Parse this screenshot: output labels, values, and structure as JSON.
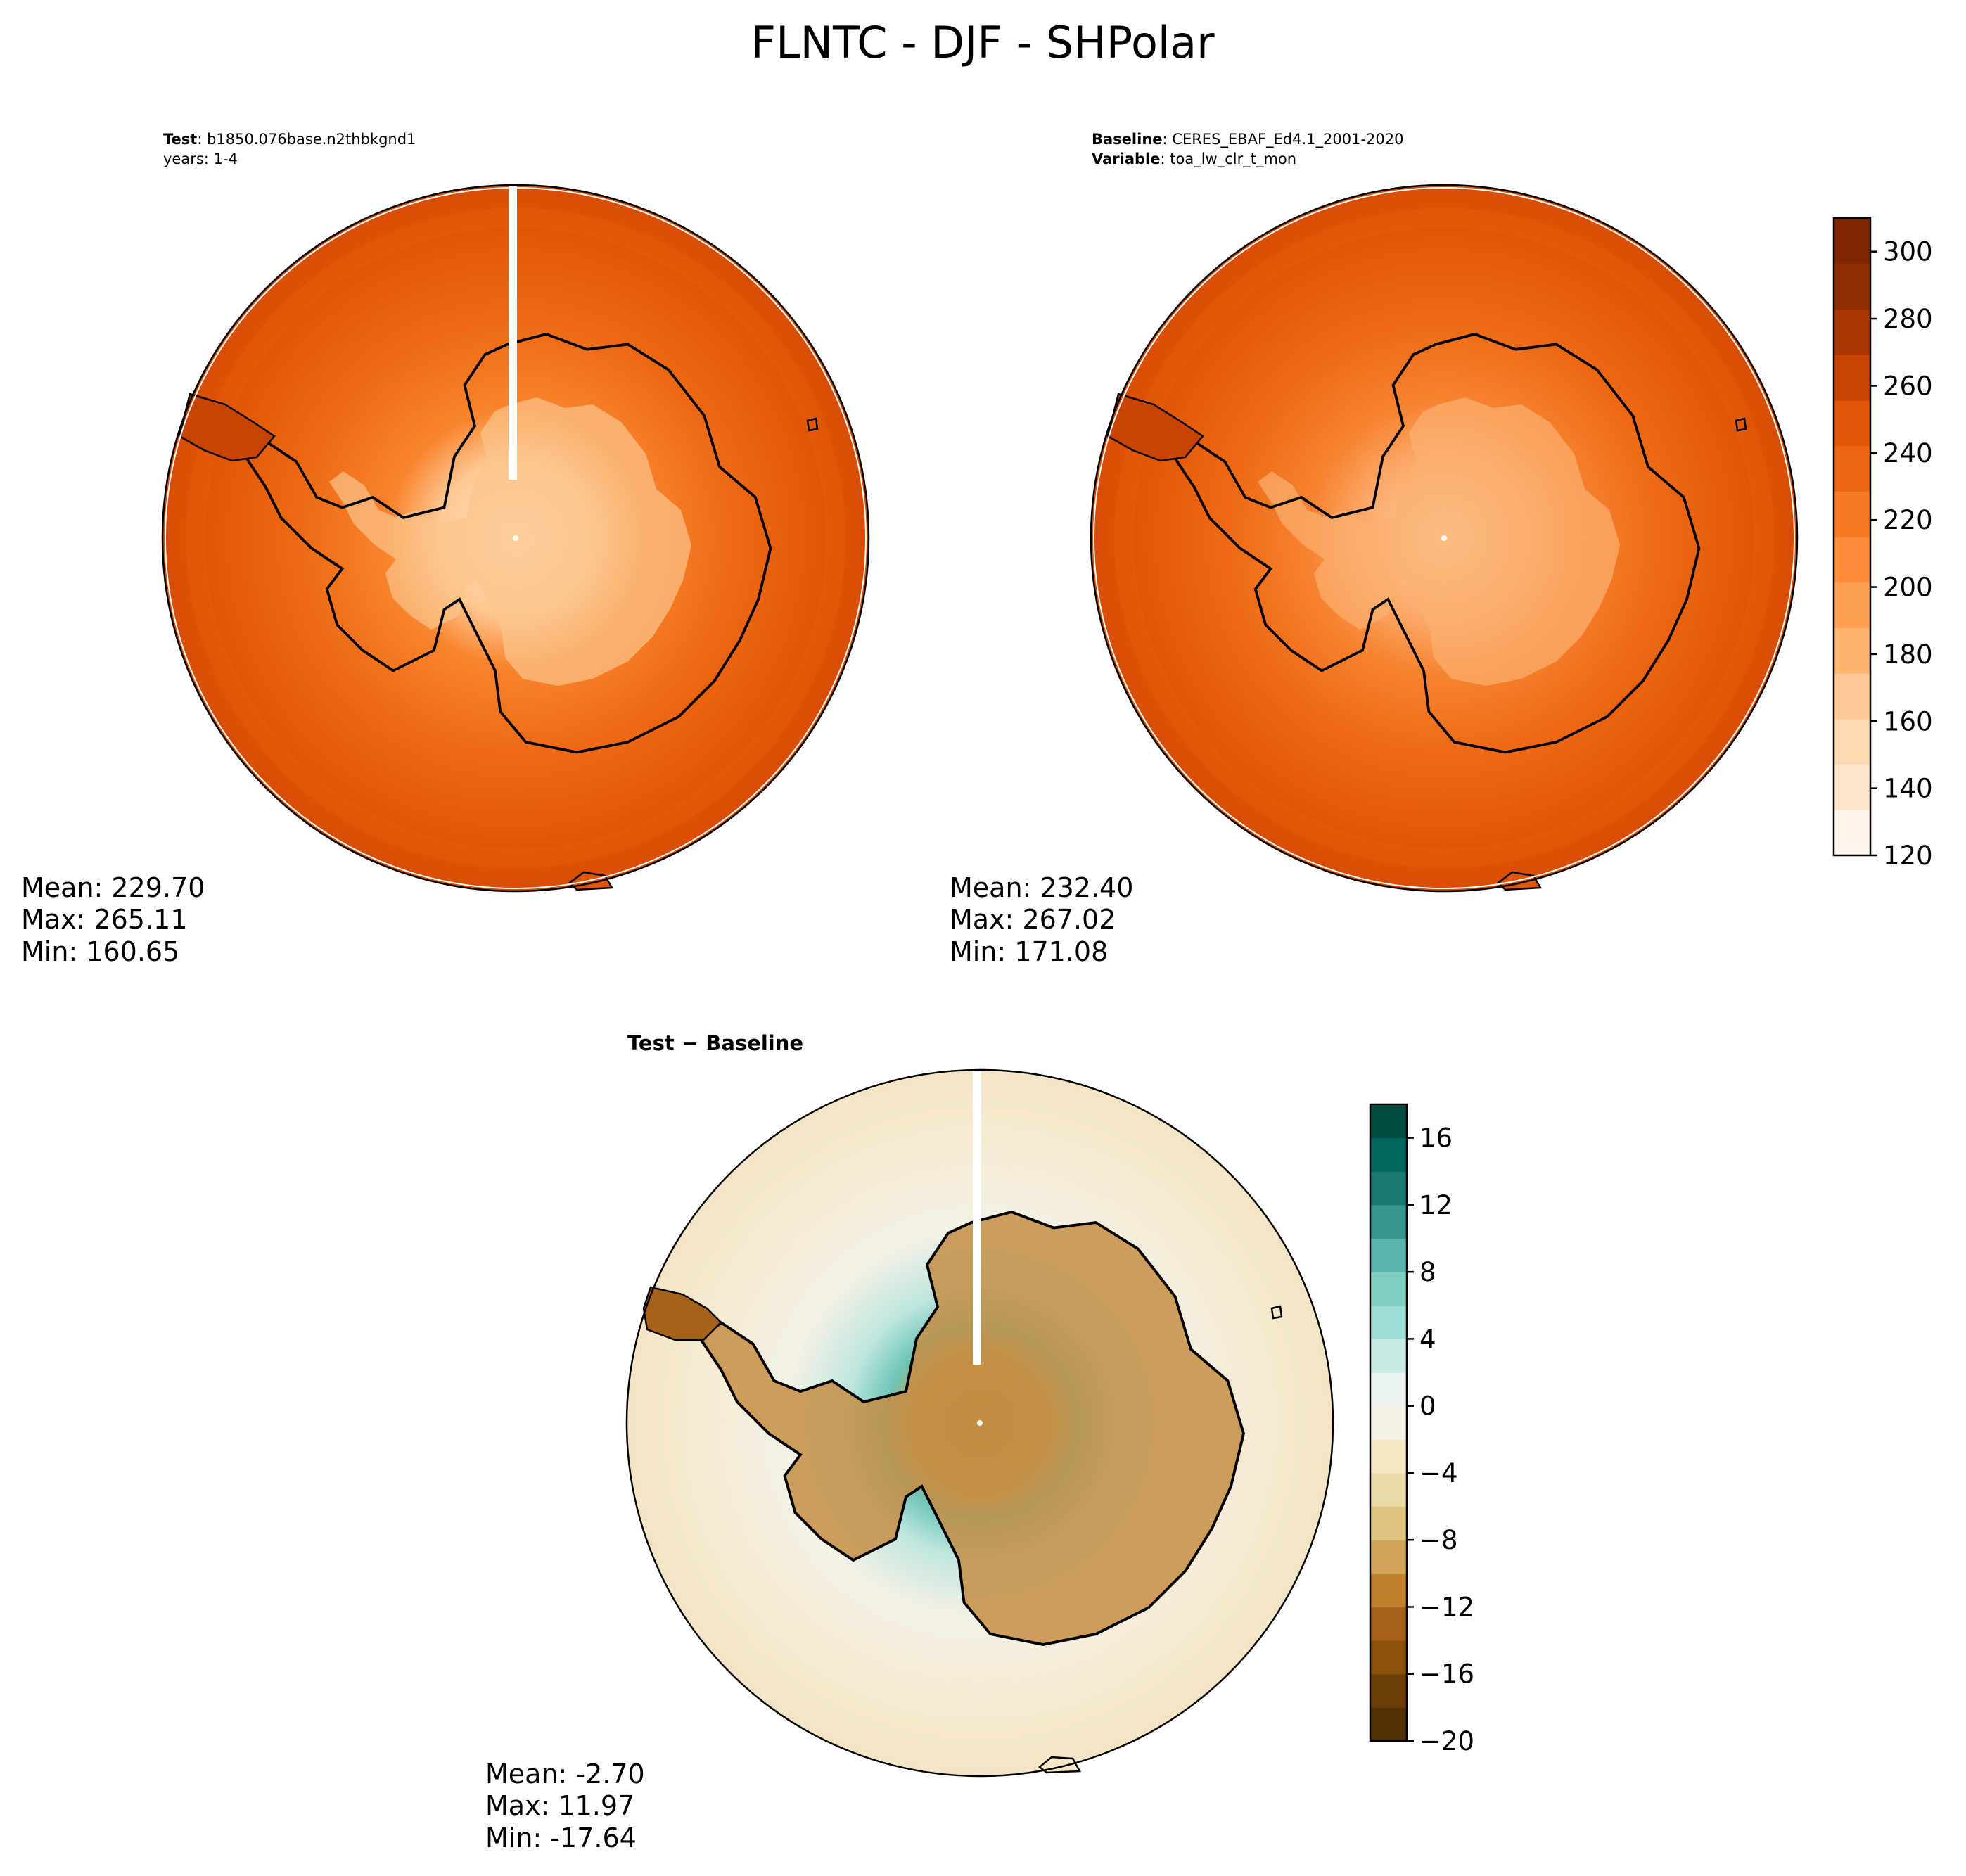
{
  "figure": {
    "title": "FLNTC - DJF - SHPolar"
  },
  "panels": {
    "test": {
      "label_key": "Test",
      "label_value": "b1850.076base.n2thbkgnd1",
      "line2": "years: 1-4",
      "stats": {
        "mean": "Mean: 229.70",
        "max": "Max: 265.11",
        "min": "Min: 160.65"
      }
    },
    "baseline": {
      "label_key": "Baseline",
      "label_value": "CERES_EBAF_Ed4.1_2001-2020",
      "line2_key": "Variable",
      "line2_value": "toa_lw_clr_t_mon",
      "stats": {
        "mean": "Mean: 232.40",
        "max": "Max: 267.02",
        "min": "Min: 171.08"
      }
    },
    "diff": {
      "title": "Test − Baseline",
      "stats": {
        "mean": "Mean: -2.70",
        "max": "Max: 11.97",
        "min": "Min: -17.64"
      }
    }
  },
  "colorbars": {
    "main": {
      "min": 120,
      "max": 310,
      "ticks": [
        "120",
        "140",
        "160",
        "180",
        "200",
        "220",
        "240",
        "260",
        "280",
        "300"
      ],
      "colors": [
        "#fff5eb",
        "#fee6ce",
        "#fdd9b4",
        "#fdc997",
        "#fdb46e",
        "#fd9f52",
        "#fd8c3b",
        "#f57a25",
        "#ea6612",
        "#e05508",
        "#c94302",
        "#a83703",
        "#8c2d04",
        "#7f2704"
      ]
    },
    "diff": {
      "min": -20,
      "max": 18,
      "ticks": [
        "−20",
        "−16",
        "−12",
        "−8",
        "−4",
        "0",
        "4",
        "8",
        "12",
        "16"
      ],
      "colors": [
        "#543005",
        "#6b3d07",
        "#8c510a",
        "#a76219",
        "#bf812d",
        "#d0a356",
        "#dfc27d",
        "#ecd9a8",
        "#f6e8c3",
        "#f5f1e4",
        "#eaf3f1",
        "#c7eae5",
        "#9fdcd3",
        "#80cdc1",
        "#5ab4ac",
        "#35978f",
        "#1a7b73",
        "#01665e",
        "#004c42"
      ]
    }
  }
}
